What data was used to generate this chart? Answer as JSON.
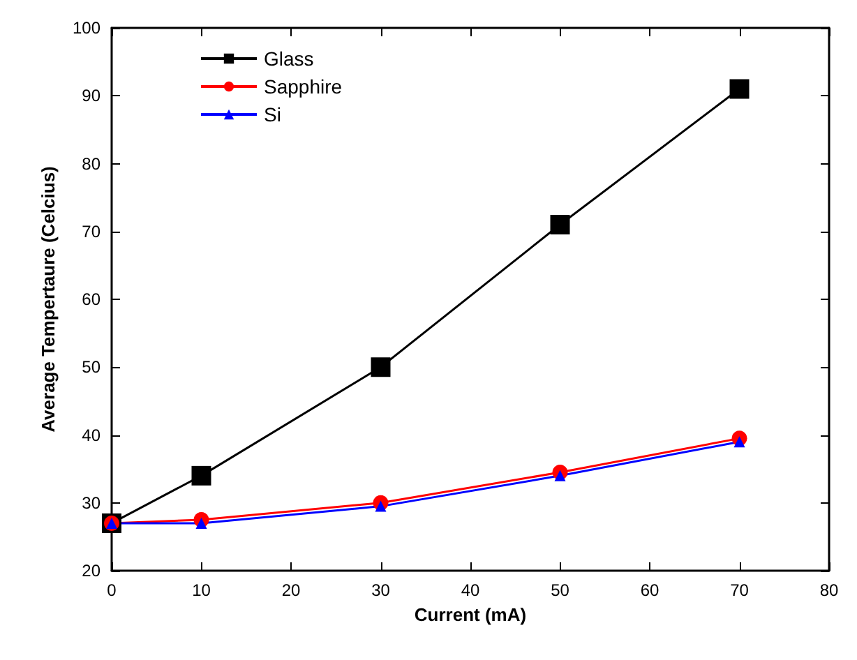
{
  "chart_data": {
    "type": "line",
    "xlabel": "Current (mA)",
    "ylabel": "Average Tempertaure (Celcius)",
    "x": [
      0,
      10,
      30,
      50,
      70
    ],
    "xlim": [
      0,
      80
    ],
    "xticks": [
      0,
      10,
      20,
      30,
      40,
      50,
      60,
      70,
      80
    ],
    "ylim": [
      20,
      100
    ],
    "yticks": [
      20,
      30,
      40,
      50,
      60,
      70,
      80,
      90,
      100
    ],
    "grid": false,
    "legend": "top left",
    "line_style": "solid",
    "series": [
      {
        "name": "Glass",
        "color": "#000000",
        "marker": "square",
        "values": [
          27,
          34,
          50,
          71,
          91
        ]
      },
      {
        "name": "Sapphire",
        "color": "#ff0000",
        "marker": "circle",
        "values": [
          27,
          27.5,
          30,
          34.5,
          39.5
        ]
      },
      {
        "name": "Si",
        "color": "#0000ff",
        "marker": "triangle",
        "values": [
          27,
          27,
          29.5,
          34,
          39
        ]
      }
    ]
  }
}
